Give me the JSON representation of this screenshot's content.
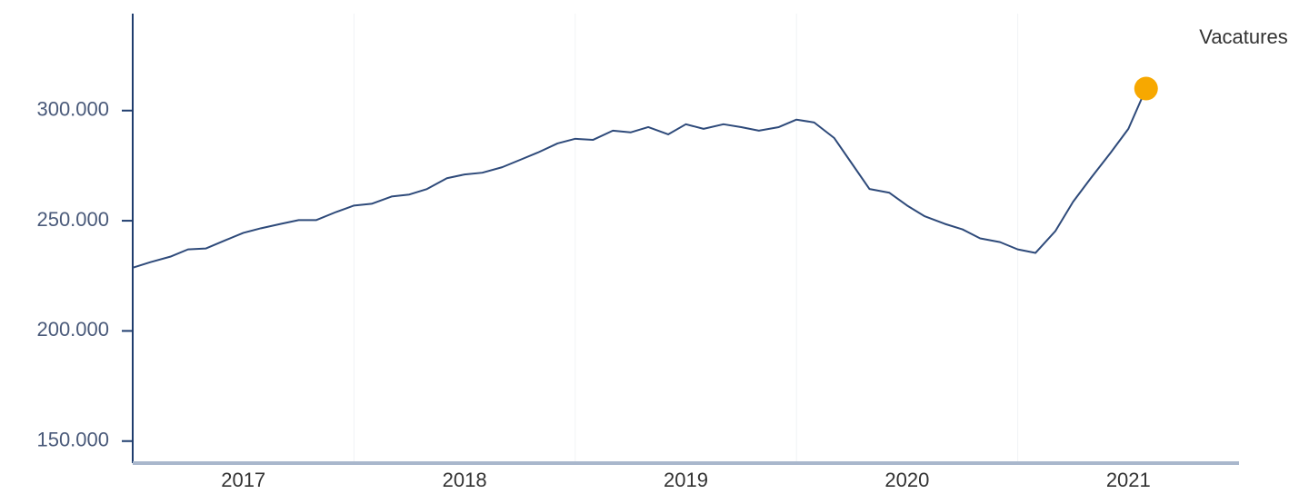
{
  "chart_data": {
    "type": "line",
    "x": [
      2017,
      2017.08,
      2017.17,
      2017.25,
      2017.33,
      2017.42,
      2017.5,
      2017.58,
      2017.67,
      2017.75,
      2017.83,
      2017.92,
      2018,
      2018.08,
      2018.17,
      2018.25,
      2018.33,
      2018.42,
      2018.5,
      2018.58,
      2018.67,
      2018.75,
      2018.83,
      2018.92,
      2019,
      2019.08,
      2019.17,
      2019.25,
      2019.33,
      2019.42,
      2019.5,
      2019.58,
      2019.67,
      2019.75,
      2019.83,
      2019.92,
      2020,
      2020.08,
      2020.17,
      2020.25,
      2020.33,
      2020.42,
      2020.5,
      2020.58,
      2020.67,
      2020.75,
      2020.83,
      2020.92,
      2021,
      2021.08,
      2021.17,
      2021.25,
      2021.33,
      2021.42,
      2021.5,
      2021.58
    ],
    "series": [
      {
        "name": "Vacatures",
        "color": "#2e4a7a",
        "marker_color": "#f7a800",
        "values": [
          228700,
          231200,
          233700,
          237000,
          237400,
          241200,
          244500,
          246600,
          248600,
          250300,
          250300,
          254000,
          256900,
          257700,
          261000,
          261900,
          264400,
          269300,
          271000,
          271800,
          274300,
          277600,
          280900,
          285100,
          287200,
          286700,
          290900,
          290100,
          292500,
          289200,
          293800,
          291700,
          293800,
          292500,
          290900,
          292500,
          295900,
          294600,
          287600,
          276000,
          264400,
          262700,
          256900,
          252000,
          248600,
          246100,
          242000,
          240300,
          237000,
          235400,
          245300,
          258600,
          269300,
          280900,
          291700,
          310000
        ]
      }
    ],
    "xlim": [
      2017,
      2022
    ],
    "xticks": [
      {
        "value": 2017.5,
        "label": "2017"
      },
      {
        "value": 2018.5,
        "label": "2018"
      },
      {
        "value": 2019.5,
        "label": "2019"
      },
      {
        "value": 2020.5,
        "label": "2020"
      },
      {
        "value": 2021.5,
        "label": "2021"
      }
    ],
    "xgrid": [
      2018,
      2019,
      2020,
      2021
    ],
    "ylim": [
      140000,
      344000
    ],
    "yticks": [
      {
        "value": 150000,
        "label": "150.000"
      },
      {
        "value": 200000,
        "label": "200.000"
      },
      {
        "value": 250000,
        "label": "250.000"
      },
      {
        "value": 300000,
        "label": "300.000"
      }
    ]
  }
}
